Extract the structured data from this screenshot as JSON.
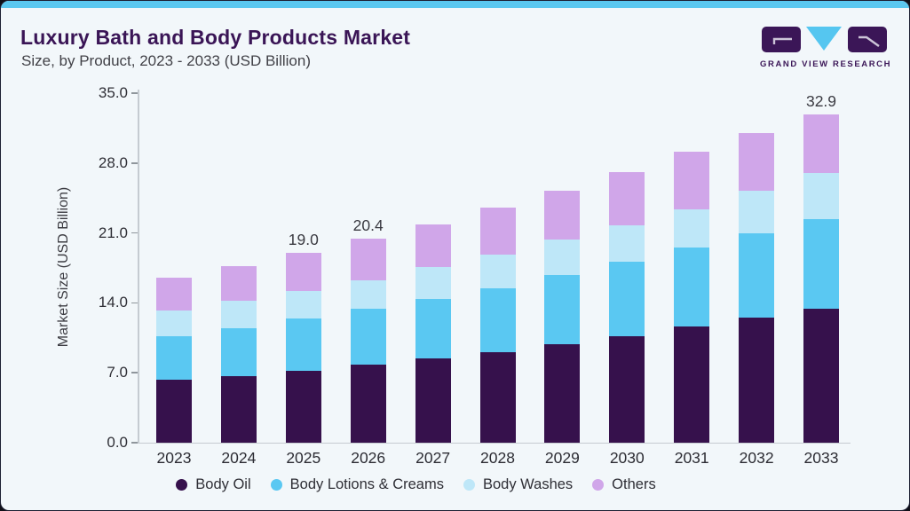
{
  "page": {
    "accent_color": "#5bc8f0",
    "card_background": "#f2f7fa"
  },
  "header": {
    "title": "Luxury Bath and Body Products Market",
    "subtitle": "Size, by Product, 2023 - 2033 (USD Billion)",
    "logo_text": "GRAND VIEW RESEARCH",
    "logo_colors": {
      "tile": "#3b1657",
      "triangle": "#55c6f0",
      "glyph": "#cdc5d8"
    }
  },
  "chart_data": {
    "type": "bar",
    "stacked": true,
    "ylabel": "Market Size (USD Billion)",
    "ylim": [
      0,
      35
    ],
    "ytick_labels": [
      "0.0",
      "7.0",
      "14.0",
      "21.0",
      "28.0",
      "35.0"
    ],
    "ytick_values": [
      0,
      7,
      14,
      21,
      28,
      35
    ],
    "grid": false,
    "legend_position": "bottom",
    "categories": [
      "2023",
      "2024",
      "2025",
      "2026",
      "2027",
      "2028",
      "2029",
      "2030",
      "2031",
      "2032",
      "2033"
    ],
    "series": [
      {
        "name": "Body Oil",
        "color": "#36114c",
        "values": [
          6.3,
          6.7,
          7.2,
          7.8,
          8.4,
          9.1,
          9.9,
          10.7,
          11.6,
          12.5,
          13.4
        ]
      },
      {
        "name": "Body Lotions & Creams",
        "color": "#5ac8f2",
        "values": [
          4.4,
          4.8,
          5.2,
          5.6,
          6.0,
          6.4,
          6.9,
          7.4,
          7.9,
          8.5,
          9.0
        ]
      },
      {
        "name": "Body Washes",
        "color": "#bee7f8",
        "values": [
          2.5,
          2.7,
          2.8,
          2.9,
          3.2,
          3.3,
          3.5,
          3.7,
          3.9,
          4.2,
          4.6
        ]
      },
      {
        "name": "Others",
        "color": "#d0a6e9",
        "values": [
          3.3,
          3.5,
          3.8,
          4.1,
          4.3,
          4.7,
          4.9,
          5.3,
          5.7,
          5.8,
          5.9
        ]
      }
    ],
    "bar_totals": [
      16.5,
      17.7,
      19.0,
      20.4,
      21.9,
      23.5,
      25.2,
      27.1,
      29.1,
      31.0,
      32.9
    ],
    "bar_labels": [
      "",
      "",
      "19.0",
      "20.4",
      "",
      "",
      "",
      "",
      "",
      "",
      "32.9"
    ]
  }
}
